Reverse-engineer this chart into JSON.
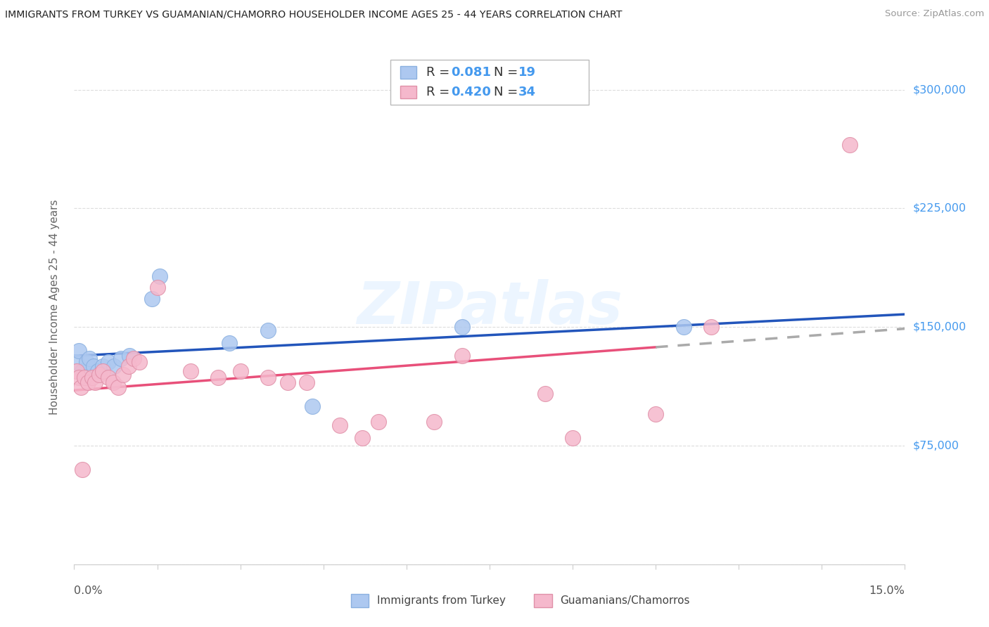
{
  "title": "IMMIGRANTS FROM TURKEY VS GUAMANIAN/CHAMORRO HOUSEHOLDER INCOME AGES 25 - 44 YEARS CORRELATION CHART",
  "source": "Source: ZipAtlas.com",
  "ylabel": "Householder Income Ages 25 - 44 years",
  "xlim": [
    0.0,
    15.0
  ],
  "ylim": [
    0,
    325000
  ],
  "yticks": [
    0,
    75000,
    150000,
    225000,
    300000
  ],
  "ytick_labels_right": [
    "$75,000",
    "$150,000",
    "$225,000",
    "$300,000"
  ],
  "legend_r1": "0.081",
  "legend_n1": "19",
  "legend_r2": "0.420",
  "legend_n2": "34",
  "color_blue": "#adc8f0",
  "color_blue_edge": "#8ab0e0",
  "color_pink": "#f5b8cc",
  "color_pink_edge": "#e090a8",
  "color_line_blue": "#2255bb",
  "color_line_pink": "#e8507a",
  "color_text_accent": "#4499ee",
  "color_grid": "#dddddd",
  "color_axis": "#cccccc",
  "turkey_x": [
    0.05,
    0.08,
    0.15,
    0.22,
    0.28,
    0.35,
    0.42,
    0.52,
    0.62,
    0.72,
    0.85,
    1.0,
    1.4,
    1.55,
    2.8,
    3.5,
    4.3,
    7.0,
    11.0
  ],
  "turkey_y": [
    128000,
    135000,
    122000,
    128000,
    130000,
    125000,
    122000,
    125000,
    128000,
    125000,
    130000,
    132000,
    168000,
    182000,
    140000,
    148000,
    100000,
    150000,
    150000
  ],
  "guam_x": [
    0.05,
    0.08,
    0.12,
    0.18,
    0.25,
    0.32,
    0.38,
    0.45,
    0.52,
    0.62,
    0.7,
    0.8,
    0.88,
    0.98,
    1.08,
    1.18,
    1.5,
    2.1,
    2.6,
    3.0,
    3.5,
    3.85,
    4.2,
    4.8,
    5.2,
    5.5,
    6.5,
    7.0,
    8.5,
    9.0,
    10.5,
    11.5,
    14.0,
    0.15
  ],
  "guam_y": [
    122000,
    118000,
    112000,
    118000,
    115000,
    118000,
    115000,
    120000,
    122000,
    118000,
    115000,
    112000,
    120000,
    125000,
    130000,
    128000,
    175000,
    122000,
    118000,
    122000,
    118000,
    115000,
    115000,
    88000,
    80000,
    90000,
    90000,
    132000,
    108000,
    80000,
    95000,
    150000,
    265000,
    60000
  ]
}
